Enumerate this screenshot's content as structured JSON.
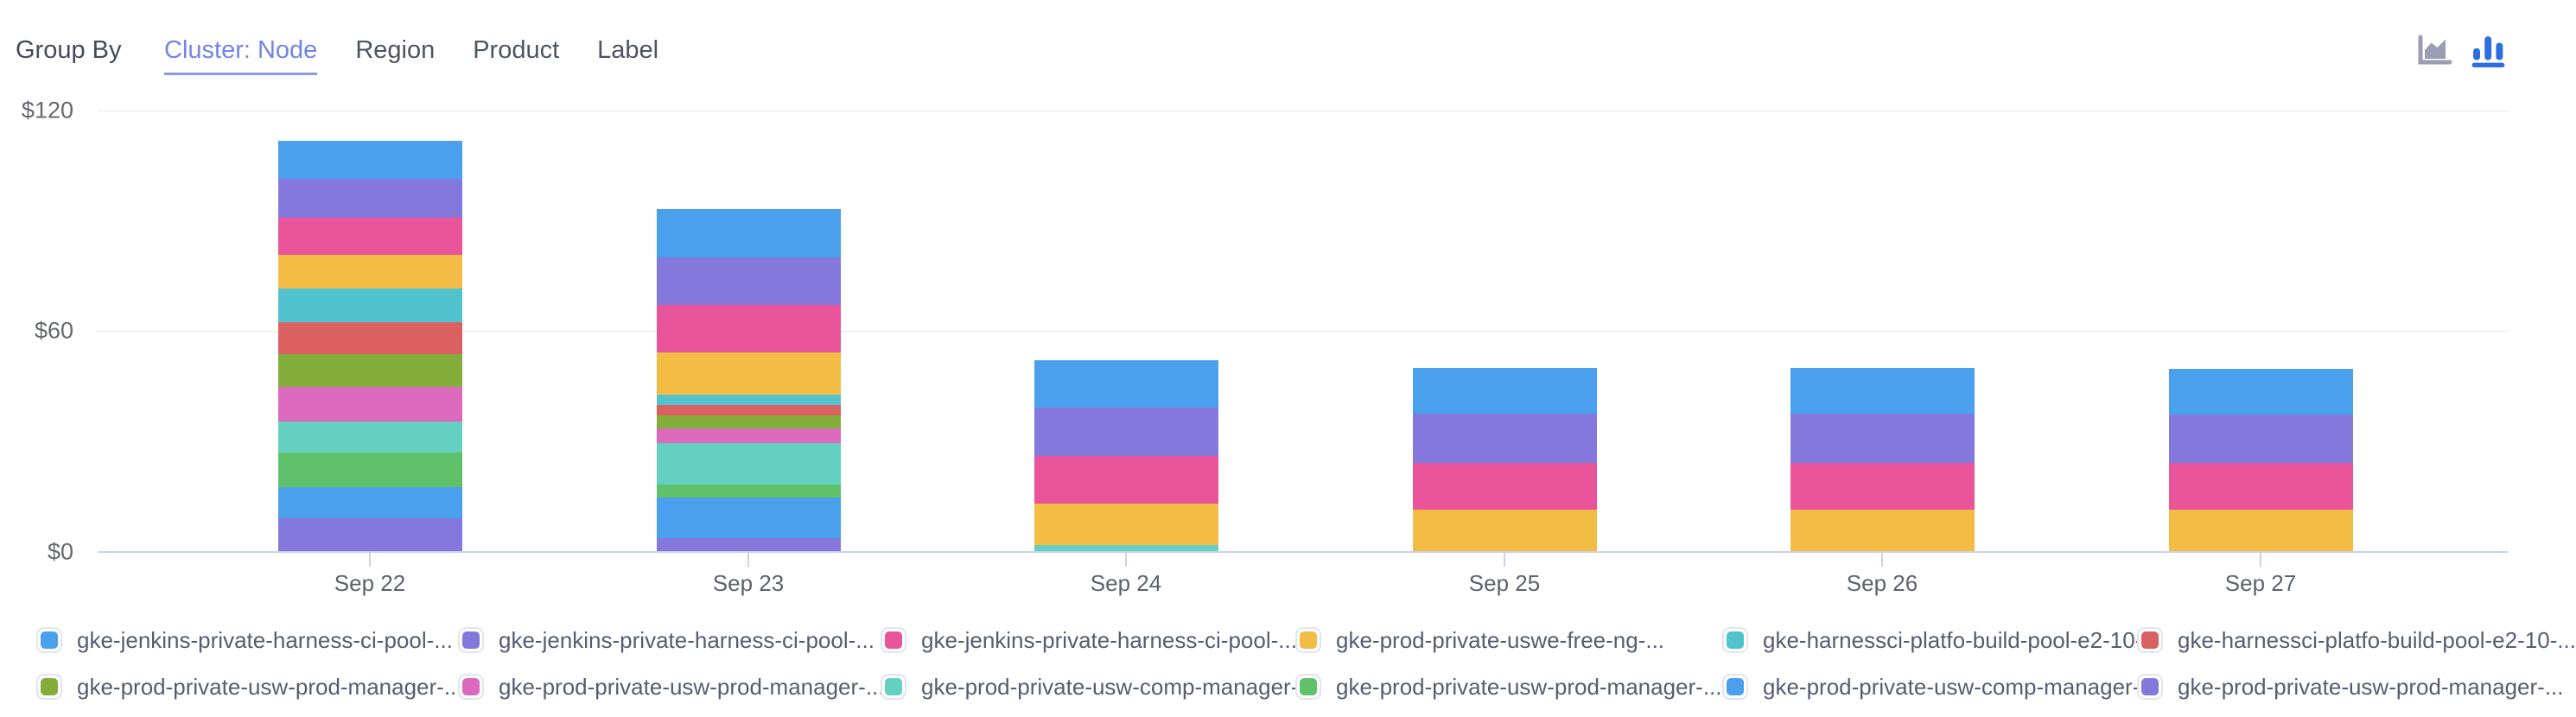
{
  "header": {
    "group_by_label": "Group By",
    "tabs": [
      {
        "label": "Cluster: Node",
        "active": true
      },
      {
        "label": "Region",
        "active": false
      },
      {
        "label": "Product",
        "active": false
      },
      {
        "label": "Label",
        "active": false
      }
    ],
    "chart_toggles": [
      {
        "name": "area-chart",
        "active": false
      },
      {
        "name": "bar-chart",
        "active": true
      }
    ]
  },
  "colors": {
    "accent_tab": "#7285E5",
    "icon_active": "#2D6FE1",
    "icon_inactive": "#9A9DB3",
    "axis_line": "#C9D2E6",
    "gridline": "#E9E9EE"
  },
  "chart_data": {
    "type": "bar",
    "stacked": true,
    "title": "",
    "xlabel": "",
    "ylabel": "",
    "ylim": [
      0,
      120
    ],
    "y_ticks": [
      "$0",
      "$60",
      "$120"
    ],
    "grid": true,
    "legend_position": "bottom",
    "categories": [
      "Sep 22",
      "Sep 23",
      "Sep 24",
      "Sep 25",
      "Sep 26",
      "Sep 27"
    ],
    "series": [
      {
        "name": "gke-jenkins-private-harness-ci-pool-...",
        "color": "#4AA0EC",
        "values": [
          10.3,
          13.1,
          12.8,
          12.6,
          12.6,
          12.5
        ]
      },
      {
        "name": "gke-jenkins-private-harness-ci-pool-...",
        "color": "#8578DC",
        "values": [
          10.5,
          12.9,
          13.2,
          13.4,
          13.4,
          13.3
        ]
      },
      {
        "name": "gke-jenkins-private-harness-ci-pool-...",
        "color": "#E9549B",
        "values": [
          10.1,
          13.0,
          12.9,
          12.6,
          12.6,
          12.5
        ]
      },
      {
        "name": "gke-prod-private-uswe-free-ng-...",
        "color": "#F3BC45",
        "values": [
          9.3,
          11.6,
          11.3,
          11.4,
          11.4,
          11.4
        ]
      },
      {
        "name": "gke-harnessci-platfo-build-pool-e2-10-...",
        "color": "#50C3CF",
        "values": [
          9.2,
          2.7,
          0,
          0,
          0,
          0
        ]
      },
      {
        "name": "gke-harnessci-platfo-build-pool-e2-10-...",
        "color": "#DB6161",
        "values": [
          8.7,
          2.8,
          0,
          0,
          0,
          0
        ]
      },
      {
        "name": "gke-prod-private-usw-prod-manager-...",
        "color": "#83AE3C",
        "values": [
          8.9,
          3.7,
          0,
          0,
          0,
          0
        ]
      },
      {
        "name": "gke-prod-private-usw-prod-manager-...",
        "color": "#DB69BD",
        "values": [
          9.4,
          3.9,
          0,
          0,
          0,
          0
        ]
      },
      {
        "name": "gke-prod-private-usw-comp-manager-...",
        "color": "#64D0C2",
        "values": [
          8.5,
          11.4,
          1.7,
          0,
          0,
          0
        ]
      },
      {
        "name": "gke-prod-private-usw-prod-manager-...",
        "color": "#5FC26B",
        "values": [
          9.3,
          3.5,
          0,
          0,
          0,
          0
        ]
      },
      {
        "name": "gke-prod-private-usw-comp-manager-...",
        "color": "#4AA0EC",
        "values": [
          8.5,
          11.0,
          0,
          0,
          0,
          0
        ]
      },
      {
        "name": "gke-prod-private-usw-prod-manager-...",
        "color": "#8578DC",
        "values": [
          9.0,
          3.5,
          0,
          0,
          0,
          0
        ]
      }
    ]
  }
}
